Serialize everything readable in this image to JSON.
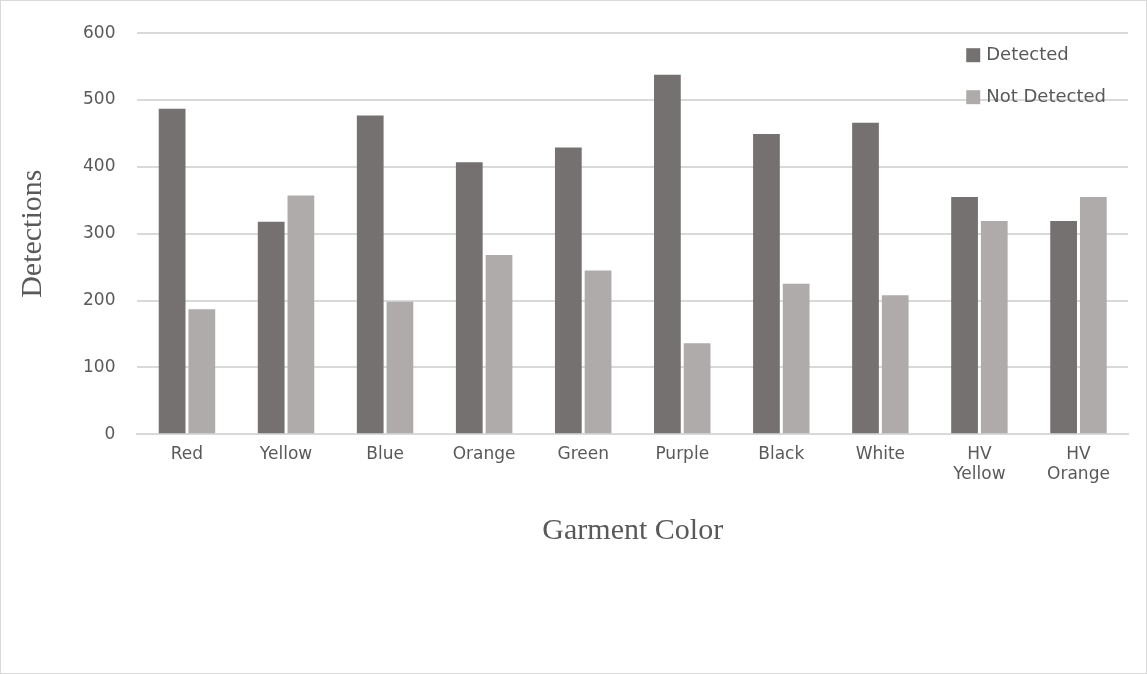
{
  "chart_data": {
    "type": "bar",
    "xlabel": "Garment Color",
    "ylabel": "Detections",
    "categories": [
      "Red",
      "Yellow",
      "Blue",
      "Orange",
      "Green",
      "Purple",
      "Black",
      "White",
      "HV Yellow",
      "HV Orange"
    ],
    "series": [
      {
        "name": "Detected",
        "color": "#767171",
        "values": [
          487,
          318,
          477,
          407,
          429,
          538,
          449,
          466,
          355,
          319
        ]
      },
      {
        "name": "Not Detected",
        "color": "#afabab",
        "values": [
          187,
          357,
          198,
          268,
          245,
          136,
          225,
          208,
          319,
          355
        ]
      }
    ],
    "ylim": [
      0,
      600
    ],
    "yticks": [
      0,
      100,
      200,
      300,
      400,
      500,
      600
    ],
    "grid": "y",
    "legend": "top right"
  }
}
